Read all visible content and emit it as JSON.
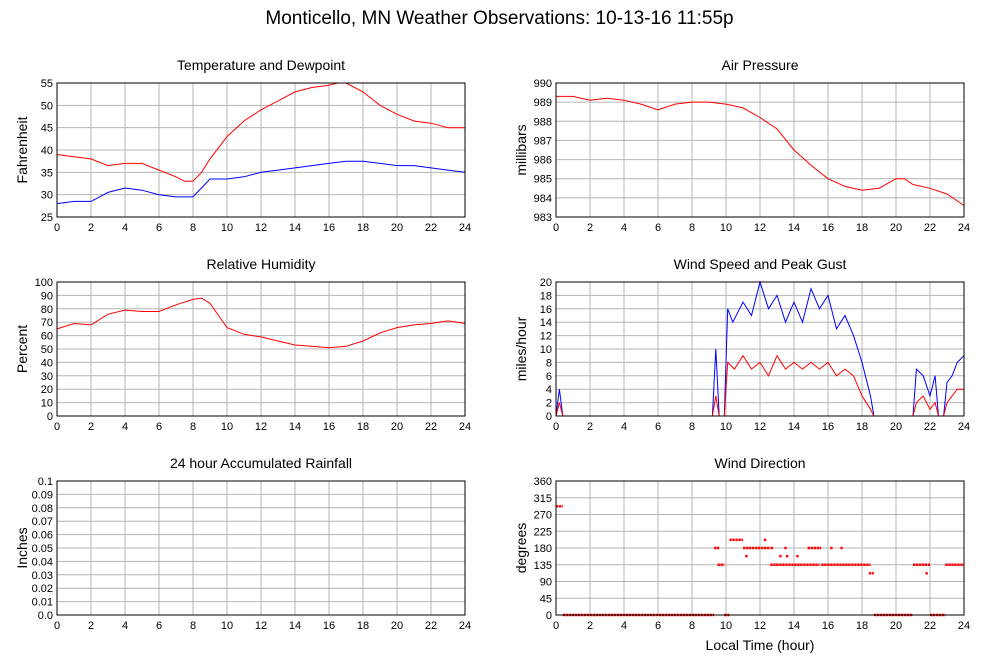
{
  "title": "Monticello, MN Weather Observations: 10-13-16 11:55p",
  "colors": {
    "red": "#ff0000",
    "blue": "#0000ff",
    "grid": "#b4b4b4"
  },
  "chart_data": [
    {
      "id": "temp",
      "type": "line",
      "title": "Temperature and Dewpoint",
      "ylabel": "Fahrenheit",
      "xlabel": "",
      "xlim": [
        0,
        24
      ],
      "ylim": [
        25,
        55
      ],
      "grid": true,
      "xticks": [
        0,
        2,
        4,
        6,
        8,
        10,
        12,
        14,
        16,
        18,
        20,
        22,
        24
      ],
      "yticks": [
        25,
        30,
        35,
        40,
        45,
        50,
        55
      ],
      "series": [
        {
          "color": "#ff0000",
          "x": [
            0,
            1,
            2,
            3,
            4,
            5,
            6,
            7,
            7.5,
            8,
            8.5,
            9,
            10,
            11,
            12,
            13,
            14,
            15,
            16,
            16.5,
            17,
            18,
            19,
            20,
            21,
            22,
            23,
            24
          ],
          "y": [
            39,
            38.5,
            38,
            36.5,
            37,
            37,
            35.5,
            34,
            33,
            33,
            35,
            38,
            43,
            46.5,
            49,
            51,
            53,
            54,
            54.5,
            55,
            55,
            53,
            50,
            48,
            46.5,
            46,
            45,
            45
          ]
        },
        {
          "color": "#0000ff",
          "x": [
            0,
            1,
            2,
            3,
            4,
            5,
            6,
            7,
            8,
            9,
            10,
            11,
            12,
            13,
            14,
            15,
            16,
            17,
            18,
            19,
            20,
            21,
            22,
            23,
            24
          ],
          "y": [
            28,
            28.5,
            28.5,
            30.5,
            31.5,
            31,
            30,
            29.5,
            29.5,
            33.5,
            33.5,
            34,
            35,
            35.5,
            36,
            36.5,
            37,
            37.5,
            37.5,
            37,
            36.5,
            36.5,
            36,
            35.5,
            35
          ]
        }
      ]
    },
    {
      "id": "pressure",
      "type": "line",
      "title": "Air Pressure",
      "ylabel": "millibars",
      "xlabel": "",
      "xlim": [
        0,
        24
      ],
      "ylim": [
        983,
        990
      ],
      "grid": true,
      "xticks": [
        0,
        2,
        4,
        6,
        8,
        10,
        12,
        14,
        16,
        18,
        20,
        22,
        24
      ],
      "yticks": [
        983,
        984,
        985,
        986,
        987,
        988,
        989,
        990
      ],
      "series": [
        {
          "color": "#ff0000",
          "x": [
            0,
            1,
            2,
            3,
            4,
            5,
            6,
            7,
            8,
            9,
            10,
            11,
            12,
            13,
            14,
            15,
            16,
            17,
            18,
            19,
            20,
            20.5,
            21,
            22,
            23,
            24
          ],
          "y": [
            989.3,
            989.3,
            989.1,
            989.2,
            989.1,
            988.9,
            988.6,
            988.9,
            989.0,
            989.0,
            988.9,
            988.7,
            988.2,
            987.6,
            986.5,
            985.7,
            985.0,
            984.6,
            984.4,
            984.5,
            985.0,
            985.0,
            984.7,
            984.5,
            984.2,
            983.6
          ]
        }
      ]
    },
    {
      "id": "humidity",
      "type": "line",
      "title": "Relative Humidity",
      "ylabel": "Percent",
      "xlabel": "",
      "xlim": [
        0,
        24
      ],
      "ylim": [
        0,
        100
      ],
      "grid": true,
      "xticks": [
        0,
        2,
        4,
        6,
        8,
        10,
        12,
        14,
        16,
        18,
        20,
        22,
        24
      ],
      "yticks": [
        0,
        10,
        20,
        30,
        40,
        50,
        60,
        70,
        80,
        90,
        100
      ],
      "series": [
        {
          "color": "#ff0000",
          "x": [
            0,
            1,
            2,
            3,
            4,
            5,
            6,
            7,
            8,
            8.5,
            9,
            10,
            11,
            12,
            13,
            14,
            15,
            16,
            17,
            18,
            19,
            20,
            21,
            22,
            23,
            24
          ],
          "y": [
            65,
            69,
            68,
            76,
            79,
            78,
            78,
            83,
            87,
            88,
            84,
            66,
            61,
            59,
            56,
            53,
            52,
            51,
            52,
            56,
            62,
            66,
            68,
            69,
            71,
            69
          ]
        }
      ]
    },
    {
      "id": "wind",
      "type": "line",
      "title": "Wind Speed and Peak Gust",
      "ylabel": "miles/hour",
      "xlabel": "",
      "xlim": [
        0,
        24
      ],
      "ylim": [
        0,
        20
      ],
      "grid": true,
      "xticks": [
        0,
        2,
        4,
        6,
        8,
        10,
        12,
        14,
        16,
        18,
        20,
        22,
        24
      ],
      "yticks": [
        0,
        2,
        4,
        6,
        8,
        10,
        12,
        14,
        16,
        18,
        20
      ],
      "series": [
        {
          "color": "#0000ff",
          "x": [
            0,
            0.2,
            0.4,
            9.2,
            9.4,
            9.6,
            9.9,
            10.1,
            10.4,
            11,
            11.5,
            12,
            12.5,
            13,
            13.5,
            14,
            14.5,
            15,
            15.5,
            16,
            16.5,
            17,
            17.5,
            18,
            18.5,
            18.7,
            21,
            21.2,
            21.6,
            22,
            22.3,
            22.5,
            22.8,
            23,
            23.3,
            23.6,
            24
          ],
          "y": [
            0,
            4,
            0,
            0,
            10,
            0,
            0,
            16,
            14,
            17,
            15,
            20,
            16,
            18,
            14,
            17,
            14,
            19,
            16,
            18,
            13,
            15,
            12,
            8,
            3,
            0,
            0,
            7,
            6,
            3,
            6,
            0,
            0,
            5,
            6,
            8,
            9
          ]
        },
        {
          "color": "#ff0000",
          "x": [
            0,
            0.2,
            0.4,
            9.2,
            9.4,
            9.6,
            9.9,
            10.1,
            10.5,
            11,
            11.5,
            12,
            12.5,
            13,
            13.5,
            14,
            14.5,
            15,
            15.5,
            16,
            16.5,
            17,
            17.5,
            18,
            18.5,
            18.7,
            21,
            21.2,
            21.6,
            22,
            22.3,
            22.5,
            22.8,
            23,
            23.3,
            23.6,
            24
          ],
          "y": [
            0,
            2,
            0,
            0,
            3,
            0,
            0,
            8,
            7,
            9,
            7,
            8,
            6,
            9,
            7,
            8,
            7,
            8,
            7,
            8,
            6,
            7,
            6,
            3,
            1,
            0,
            0,
            2,
            3,
            1,
            2,
            0,
            0,
            2,
            3,
            4,
            4
          ]
        }
      ]
    },
    {
      "id": "rain",
      "type": "line",
      "title": "24 hour Accumulated Rainfall",
      "ylabel": "Inches",
      "xlabel": "",
      "xlim": [
        0,
        24
      ],
      "ylim": [
        0,
        0.1
      ],
      "grid": true,
      "xticks": [
        0,
        2,
        4,
        6,
        8,
        10,
        12,
        14,
        16,
        18,
        20,
        22,
        24
      ],
      "yticks": [
        "0.0",
        "0.01",
        "0.02",
        "0.03",
        "0.04",
        "0.05",
        "0.06",
        "0.07",
        "0.08",
        "0.09",
        "0.1"
      ],
      "series": [
        {
          "color": "#ff0000",
          "x": [
            0,
            24
          ],
          "y": [
            0,
            0
          ]
        }
      ]
    },
    {
      "id": "direction",
      "type": "scatter",
      "title": "Wind Direction",
      "ylabel": "degrees",
      "xlabel": "Local Time (hour)",
      "xlim": [
        0,
        24
      ],
      "ylim": [
        0,
        360
      ],
      "grid": true,
      "xticks": [
        0,
        2,
        4,
        6,
        8,
        10,
        12,
        14,
        16,
        18,
        20,
        22,
        24
      ],
      "yticks": [
        0,
        45,
        90,
        135,
        180,
        225,
        270,
        315,
        360
      ],
      "segments": [
        {
          "x0": 0,
          "x1": 0.4,
          "y": 292
        },
        {
          "x0": 0.4,
          "x1": 9.3,
          "y": 0
        },
        {
          "x0": 9.3,
          "x1": 9.6,
          "y": 180
        },
        {
          "x0": 9.5,
          "x1": 9.9,
          "y": 135
        },
        {
          "x0": 9.9,
          "x1": 10.2,
          "y": 0
        },
        {
          "x0": 10.2,
          "x1": 11,
          "y": 202
        },
        {
          "x0": 11,
          "x1": 12.6,
          "y": 180
        },
        {
          "x0": 12.6,
          "x1": 15.5,
          "y": 135
        },
        {
          "x0": 14.8,
          "x1": 15.6,
          "y": 180
        },
        {
          "x0": 15.6,
          "x1": 18.5,
          "y": 135
        },
        {
          "x0": 18.4,
          "x1": 18.7,
          "y": 112
        },
        {
          "x0": 18.7,
          "x1": 21,
          "y": 0
        },
        {
          "x0": 21,
          "x1": 22,
          "y": 135
        },
        {
          "x0": 22,
          "x1": 22.9,
          "y": 0
        },
        {
          "x0": 22.9,
          "x1": 24,
          "y": 135
        }
      ],
      "points": [
        {
          "x": 11.2,
          "y": 158
        },
        {
          "x": 12.3,
          "y": 202
        },
        {
          "x": 12.7,
          "y": 180
        },
        {
          "x": 13.2,
          "y": 158
        },
        {
          "x": 13.6,
          "y": 158
        },
        {
          "x": 13.5,
          "y": 180
        },
        {
          "x": 14.2,
          "y": 158
        },
        {
          "x": 16.8,
          "y": 180
        },
        {
          "x": 16.2,
          "y": 180
        },
        {
          "x": 21.8,
          "y": 112
        }
      ]
    }
  ]
}
